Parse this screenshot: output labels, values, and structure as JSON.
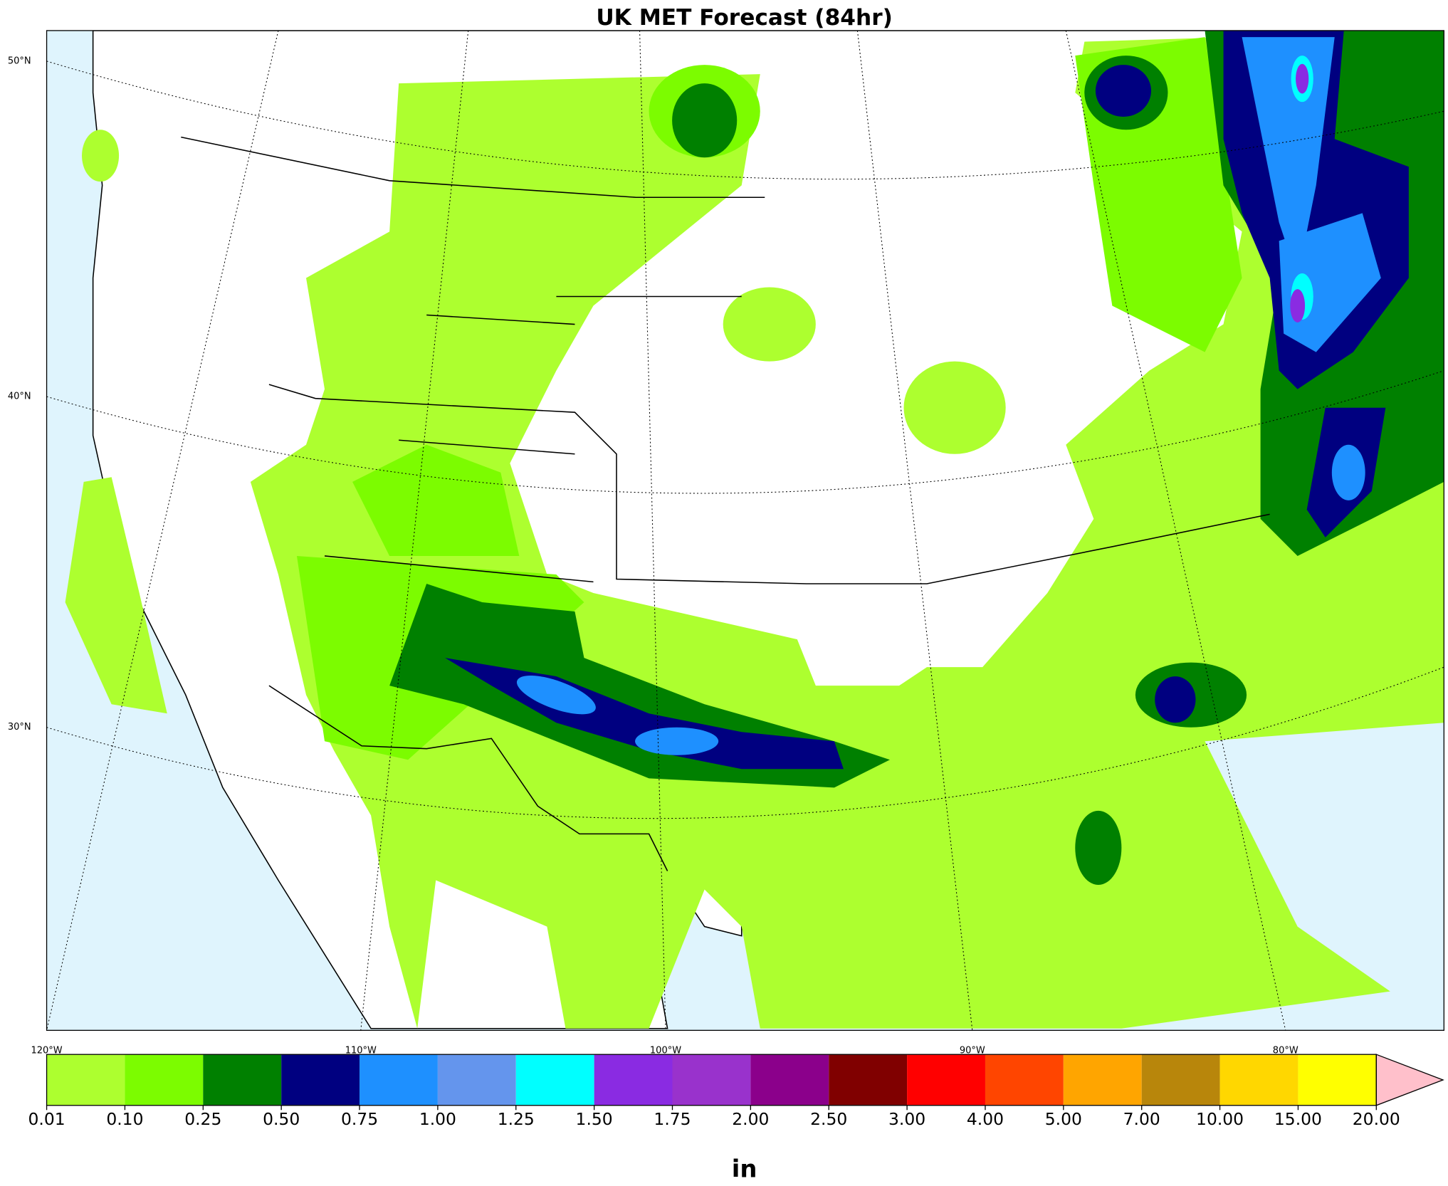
{
  "title": "UK MET Forecast (84hr)",
  "map": {
    "lat_labels": [
      "50°N",
      "40°N",
      "30°N"
    ],
    "lon_labels": [
      "120°W",
      "110°W",
      "100°W",
      "90°W",
      "80°W"
    ]
  },
  "colorbar": {
    "label": "in",
    "levels": [
      0.01,
      {
        "value": 0.1,
        "label": "0.10"
      },
      0.25,
      {
        "value": 0.5,
        "label": "0.50"
      },
      0.75,
      {
        "value": 1,
        "label": "1.00"
      },
      1.25,
      {
        "value": 1.5,
        "label": "1.50"
      },
      1.75,
      {
        "value": 2,
        "label": "2.00"
      },
      {
        "value": 2.5,
        "label": "2.50"
      },
      {
        "value": 3,
        "label": "3.00"
      },
      {
        "value": 4,
        "label": "4.00"
      },
      {
        "value": 5,
        "label": "5.00"
      },
      {
        "value": 7,
        "label": "7.00"
      },
      {
        "value": 10,
        "label": "10.00"
      },
      {
        "value": 15,
        "label": "15.00"
      },
      {
        "value": 20,
        "label": "20.00"
      }
    ],
    "colors": [
      "#adff2f",
      "#7cfc00",
      "#008000",
      "#000080",
      "#1e90ff",
      "#6495ed",
      "#00ffff",
      "#8a2be2",
      "#9932cc",
      "#8b008b",
      "#800000",
      "#ff0000",
      "#ff4500",
      "#ffa500",
      "#b8860b",
      "#ffd700",
      "#ffff00"
    ],
    "extend_color": "#ffc0cb"
  }
}
